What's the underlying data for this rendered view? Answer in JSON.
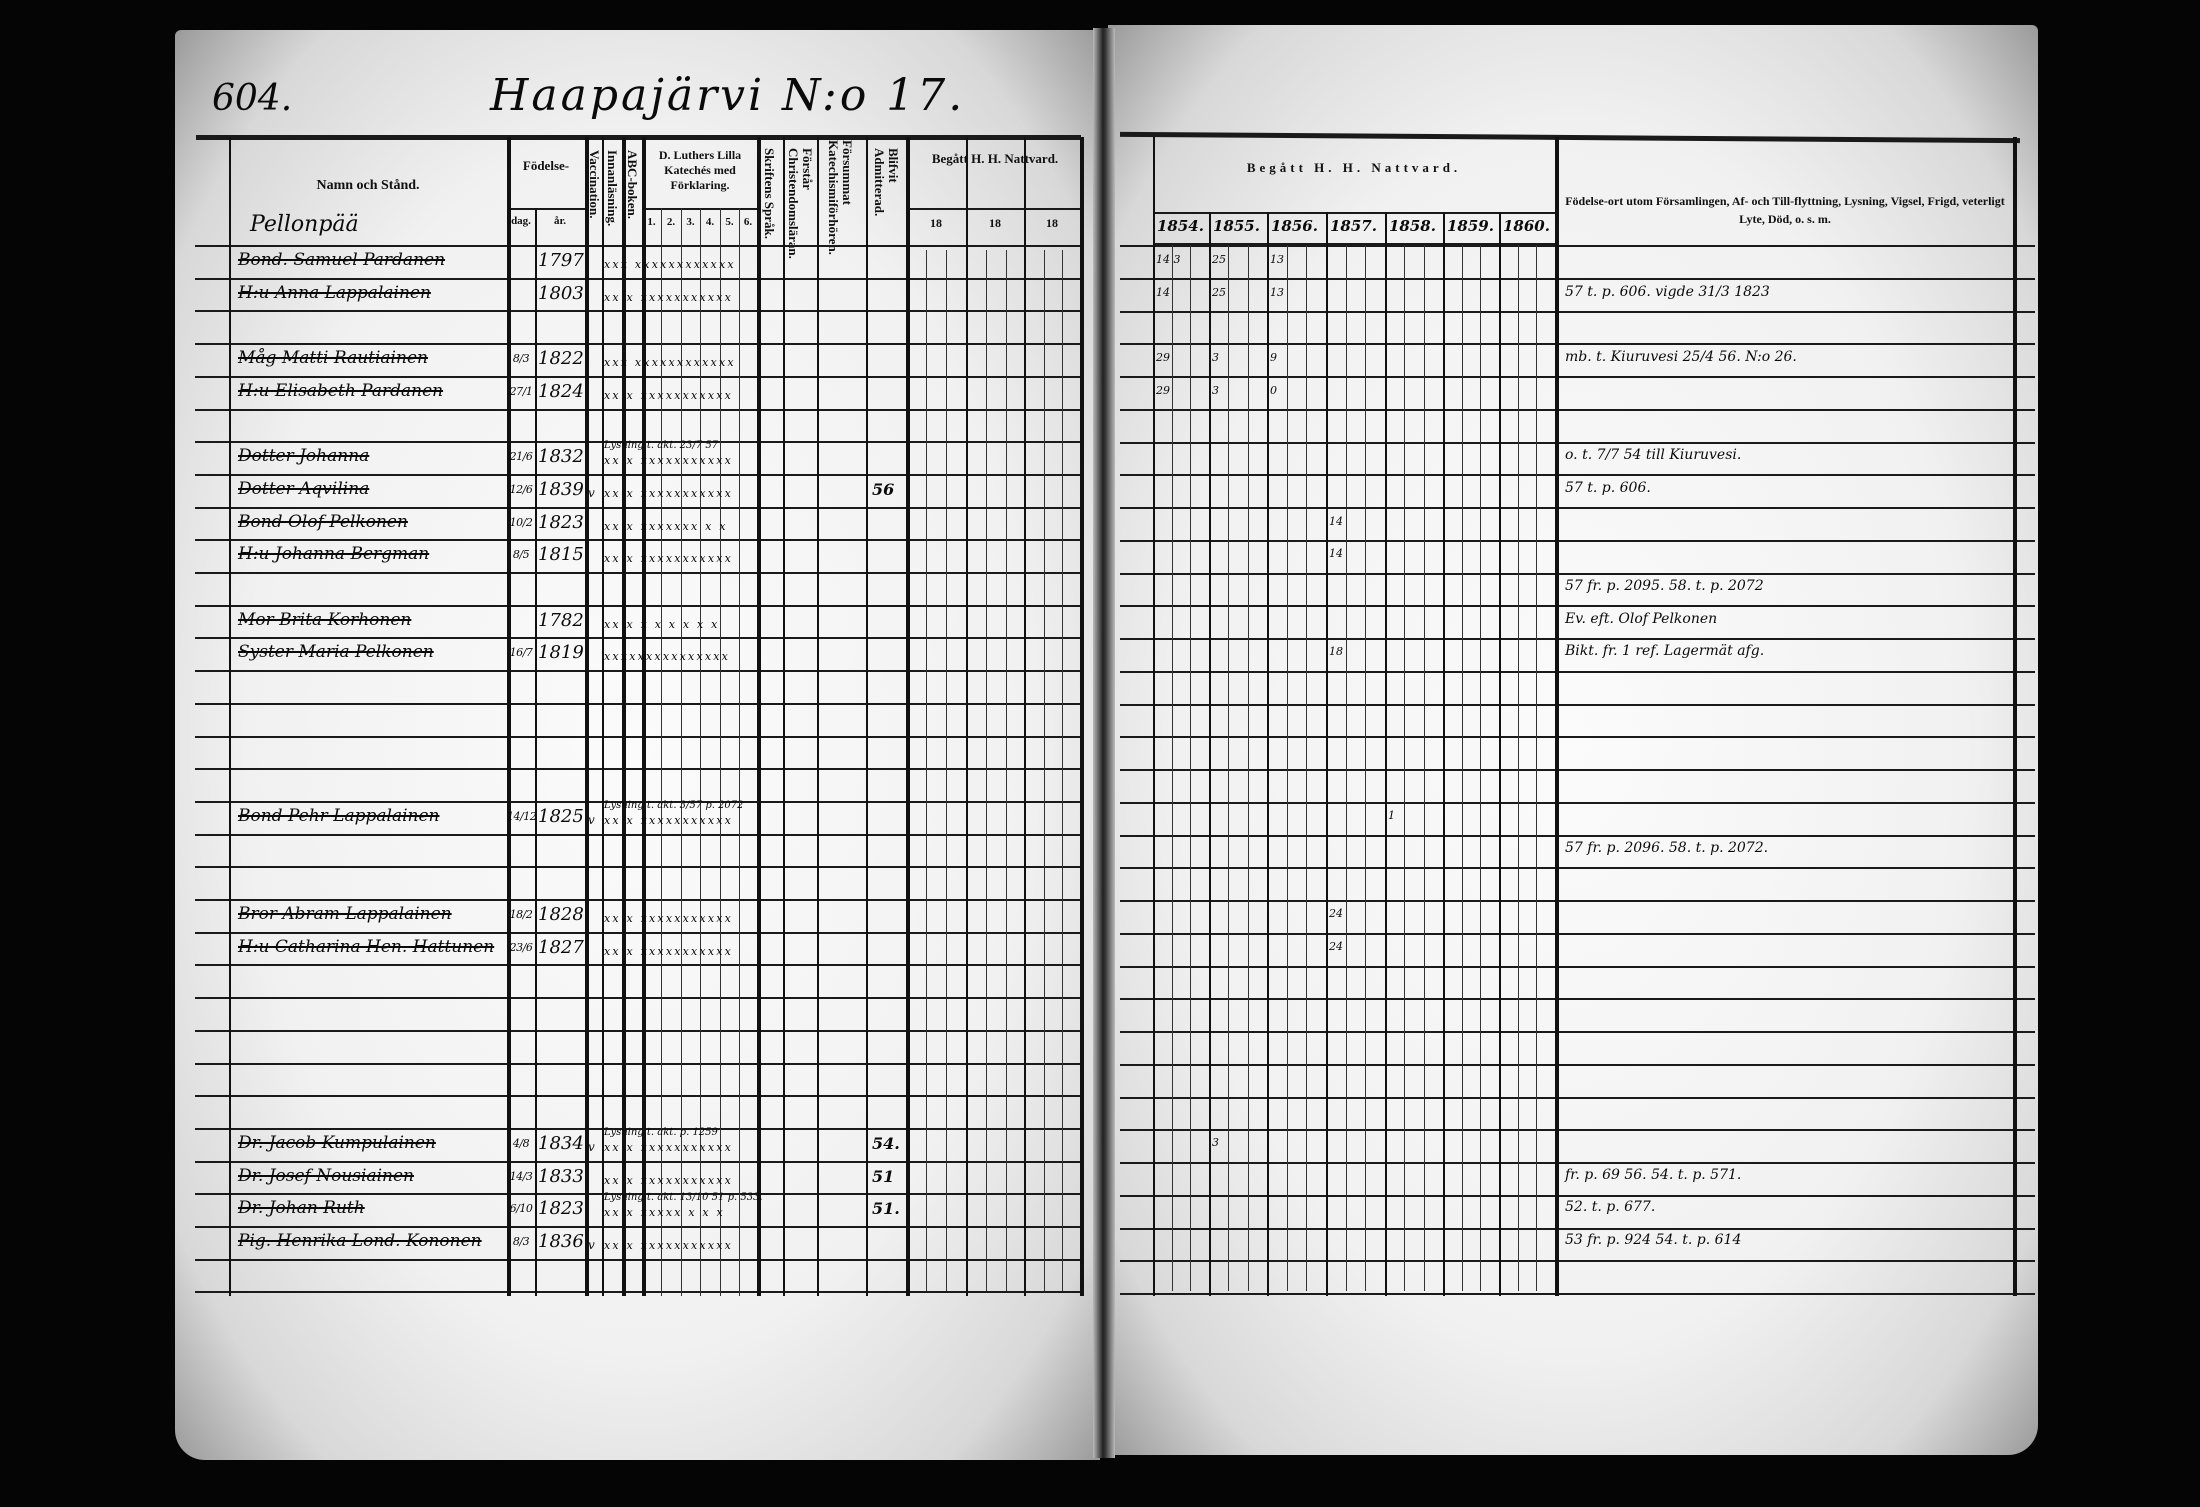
{
  "page_number": "604.",
  "title": "Haapajärvi N:o 17.",
  "left_header": {
    "name_col": "Namn och Stånd.",
    "birth": "Födelse-",
    "day": "dag.",
    "year": "år.",
    "vaccination": "Vaccination.",
    "reading": "Innanläsning.",
    "abc": "ABC-boken.",
    "catechism": "D. Luthers Lilla Katechés med Förklaring.",
    "catechism_parts": [
      "1.",
      "2.",
      "3.",
      "4.",
      "5.",
      "6."
    ],
    "scripture": "Skriftens Språk.",
    "christianity": "Förstår Christendomsläran.",
    "missed": "Försummat Katechismiförhören.",
    "admitted": "Blifvit Admitterad.",
    "communion": "Begått H. H. Nattvard.",
    "communion_years": [
      "18",
      "18",
      "18"
    ]
  },
  "right_header": {
    "communion": "Begått H. H. Nattvard.",
    "years": [
      "1854.",
      "1855.",
      "1856.",
      "1857.",
      "1858.",
      "1859.",
      "1860."
    ],
    "remarks": "Födelse-ort utom Församlingen, Af- och Till-flyttning, Lysning, Vigsel, Frigd, veterligt Lyte, Död, o. s. m."
  },
  "farm": "Pellonpää",
  "rows": [
    {
      "name": "Bond. Samuel Pardanen",
      "date": "",
      "year": "1797",
      "marks": "xxx xxxxxxxxxxxx",
      "communion": [
        "14 3",
        "25",
        "13"
      ]
    },
    {
      "name": "H:u Anna Lappalainen",
      "date": "",
      "year": "1803",
      "marks": "xx x xxxxxxxxxxx",
      "communion": [
        "14",
        "25",
        "13"
      ],
      "remark": "57 t. p. 606.  vigde 31/3 1823"
    },
    {},
    {
      "name": "Måg Matti Rautiainen",
      "date": "8/3",
      "year": "1822",
      "marks": "xxx xxxxxxxxxxxx",
      "communion": [
        "29",
        "3",
        "9"
      ],
      "remark": "mb. t. Kiuruvesi 25/4 56. N:o 26."
    },
    {
      "name": "H:u Elisabeth Pardanen",
      "date": "27/1",
      "year": "1824",
      "marks": "xx x xxxxxxxxxxx",
      "communion": [
        "29",
        "3",
        "0"
      ]
    },
    {},
    {
      "name": "Dotter Johanna",
      "date": "21/6",
      "year": "1832",
      "marks": "xx x xxxxxxxxxxx",
      "note": "Lysning t. akt. 23/7 57",
      "remark": "o. t. 7/7 54 till Kiuruvesi."
    },
    {
      "name": "Dotter Aqvilina",
      "date": "12/6",
      "year": "1839",
      "vacc": "v",
      "marks": "xx x xxxxxxxxxxx",
      "admitted": "56",
      "remark": "57 t. p. 606."
    },
    {
      "name": "Bond Olof Pelkonen",
      "date": "10/2",
      "year": "1823",
      "marks": "xx x xxxxxxx x x",
      "communion": [
        "",
        "",
        "",
        "14"
      ]
    },
    {
      "name": "H:u Johanna Bergman",
      "date": "8/5",
      "year": "1815",
      "marks": "xx x xxxxxxxxxxx",
      "communion": [
        "",
        "",
        "",
        "14"
      ]
    },
    {
      "remark": "57 fr. p. 2095. 58. t. p. 2072"
    },
    {
      "name": "Mor Brita Korhonen",
      "date": "",
      "year": "1782",
      "marks": "xx x x x x x x x",
      "remark": "Ev. eft. Olof Pelkonen"
    },
    {
      "name": "Syster Maria Pelkonen",
      "date": "16/7",
      "year": "1819",
      "marks": "xxxxxxxxxxxxxxx",
      "communion": [
        "",
        "",
        "",
        "18"
      ],
      "remark": "Bikt. fr. 1 ref. Lagermät afg."
    },
    {},
    {},
    {},
    {},
    {
      "name": "Bond Pehr Lappalainen",
      "date": "14/12",
      "year": "1825",
      "vacc": "v",
      "marks": "xx x xxxxxxxxxxx",
      "note": "Lysning t. akt. 3/57 p. 2072",
      "communion": [
        "",
        "",
        "",
        "",
        "1"
      ]
    },
    {
      "remark": "57 fr. p. 2096. 58. t. p. 2072."
    },
    {},
    {
      "name": "Bror Abram Lappalainen",
      "date": "18/2",
      "year": "1828",
      "marks": "xx x xxxxxxxxxxx",
      "communion": [
        "",
        "",
        "",
        "24"
      ]
    },
    {
      "name": "H:u Catharina Hen. Hattunen",
      "date": "23/6",
      "year": "1827",
      "marks": "xx x xxxxxxxxxxx",
      "communion": [
        "",
        "",
        "",
        "24"
      ]
    },
    {},
    {},
    {},
    {},
    {},
    {
      "name": "Dr. Jacob Kumpulainen",
      "date": "4/8",
      "year": "1834",
      "vacc": "v",
      "marks": "xx x xxxxxxxxxxx",
      "note": "Lysning t. akt. p. 1259",
      "admitted": "54.",
      "communion": [
        "",
        "3"
      ]
    },
    {
      "name": "Dr. Josef Nousiainen",
      "date": "14/3",
      "year": "1833",
      "marks": "xx x xxxxxxxxxxx",
      "admitted": "51",
      "remark": "fr. p. 69 56.  54. t. p. 571."
    },
    {
      "name": "Dr. Johan Ruth",
      "date": "6/10",
      "year": "1823",
      "marks": "xx x xxxxx x x x",
      "note": "Lysning t. akt. 13/10 51 p. 533.",
      "admitted": "51.",
      "remark": "52. t. p. 677."
    },
    {
      "name": "Pig. Henrika Lond. Kononen",
      "date": "8/3",
      "year": "1836",
      "vacc": "v",
      "marks": "xx x xxxxxxxxxxx",
      "remark": "53 fr. p. 924  54. t. p. 614"
    },
    {}
  ]
}
